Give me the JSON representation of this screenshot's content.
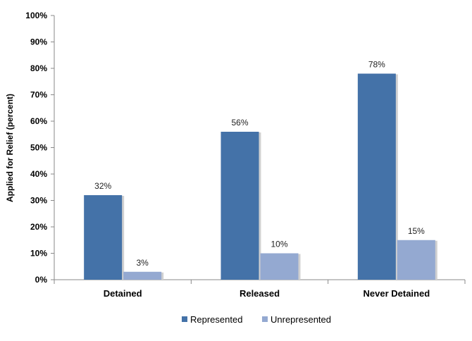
{
  "chart_data": {
    "type": "bar",
    "title": "",
    "xlabel": "",
    "ylabel": "Applied for Relief (percent)",
    "ylim": [
      0,
      100
    ],
    "y_ticks": [
      0,
      10,
      20,
      30,
      40,
      50,
      60,
      70,
      80,
      90,
      100
    ],
    "y_tick_suffix": "%",
    "grid": false,
    "legend_position": "bottom",
    "categories": [
      "Detained",
      "Released",
      "Never Detained"
    ],
    "series": [
      {
        "name": "Represented",
        "values": [
          32,
          56,
          78
        ],
        "labels": [
          "32%",
          "56%",
          "78%"
        ],
        "color": "#4472a8"
      },
      {
        "name": "Unrepresented",
        "values": [
          3,
          10,
          15
        ],
        "labels": [
          "3%",
          "10%",
          "15%"
        ],
        "color": "#94a9d1"
      }
    ]
  }
}
